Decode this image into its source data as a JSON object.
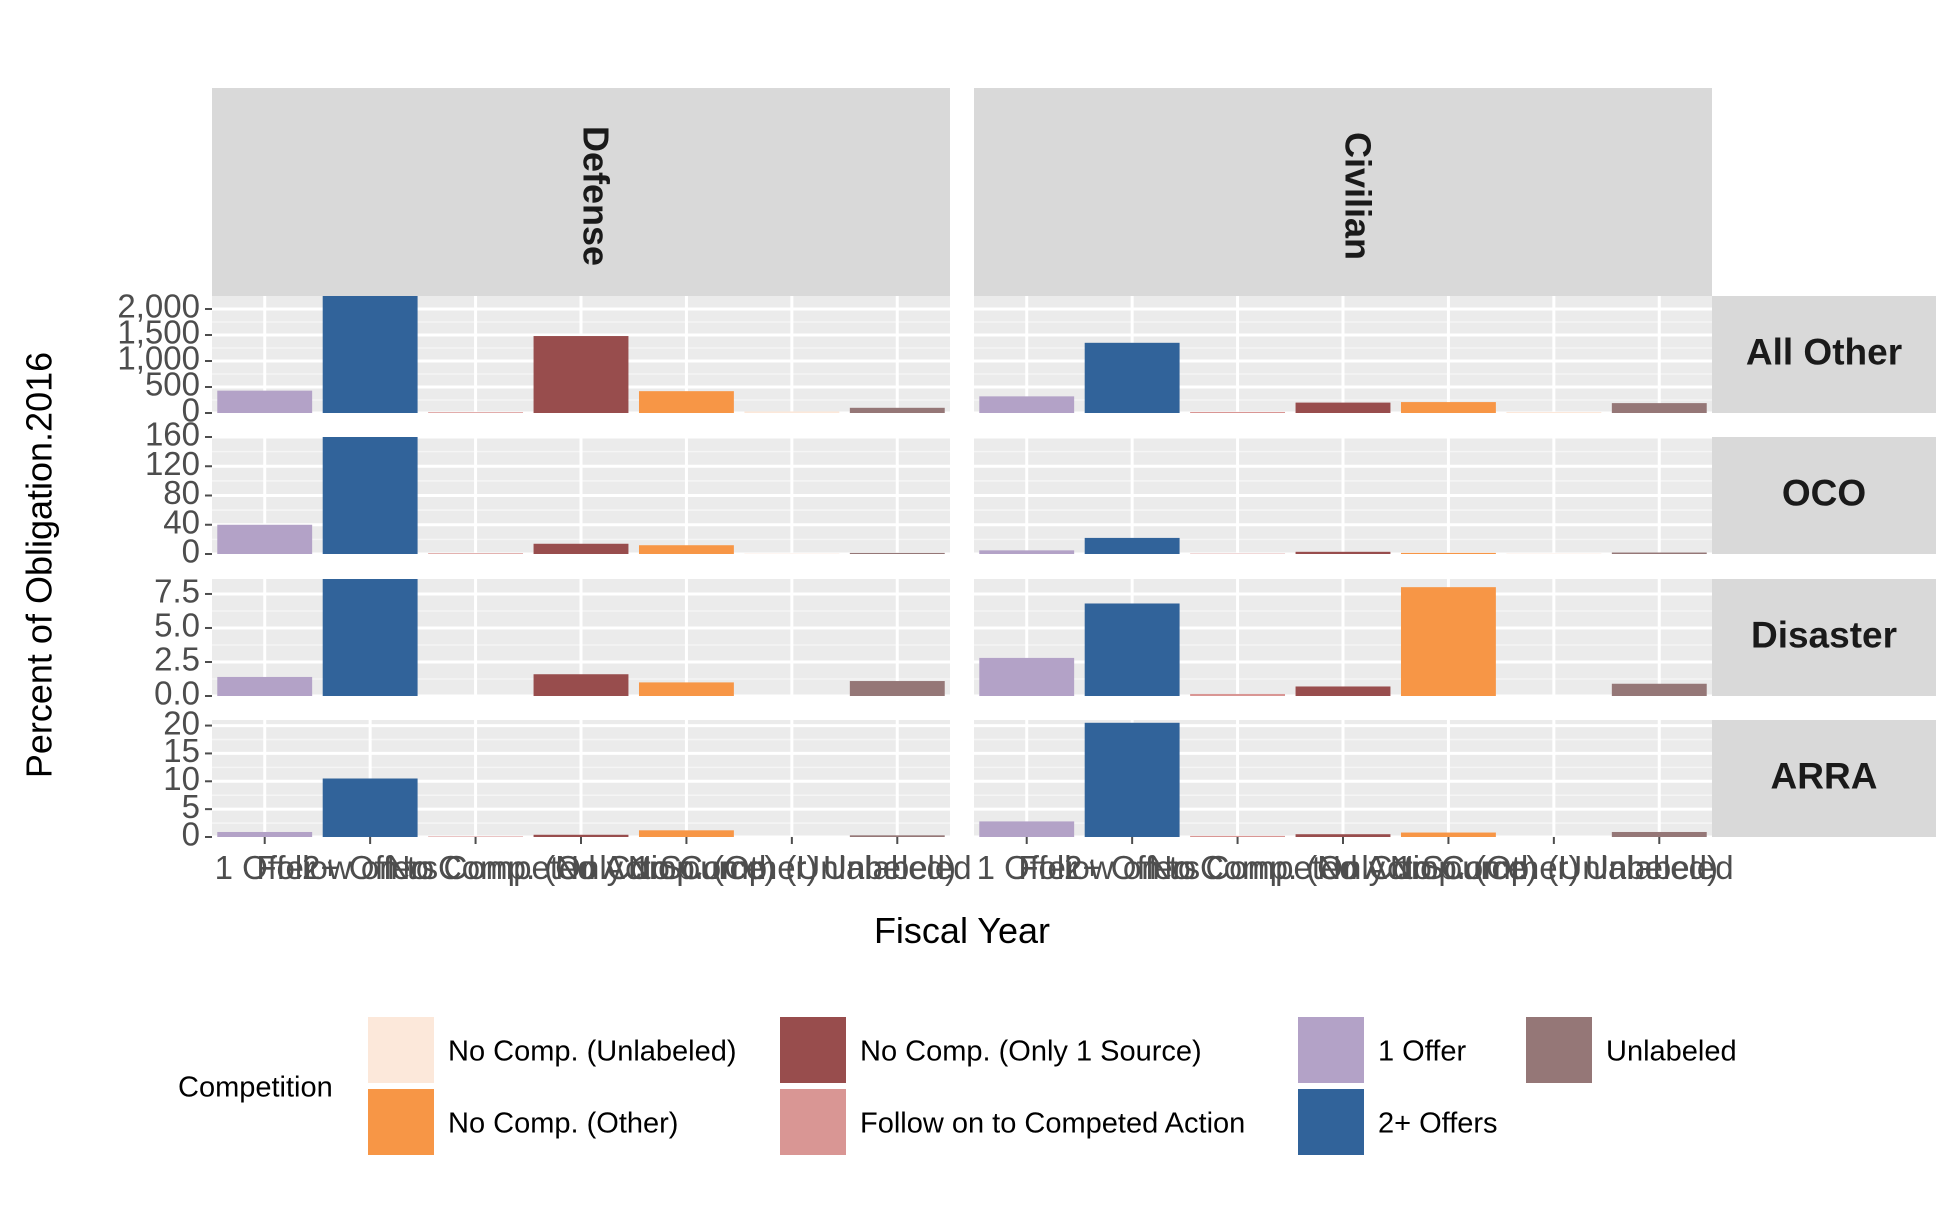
{
  "chart_data": {
    "type": "bar",
    "xlabel": "Fiscal Year",
    "ylabel": "Percent of Obligation.2016",
    "categories": [
      "1 Offer",
      "2+ Offers",
      "Follow on to Competed Action",
      "No Comp. (Only 1 Source)",
      "No Comp. (Other)",
      "No Comp. (Unlabeled)",
      "Unlabeled"
    ],
    "column_facets": [
      "Defense",
      "Civilian"
    ],
    "row_facets": [
      {
        "label": "All Other",
        "ylim": [
          0,
          2250
        ],
        "ticks": [
          0,
          500,
          1000,
          1500,
          2000
        ],
        "tick_labels": [
          "0",
          "500",
          "1,000",
          "1,500",
          "2,000"
        ],
        "values": {
          "Defense": [
            430,
            2350,
            15,
            1480,
            420,
            30,
            100
          ],
          "Civilian": [
            320,
            1350,
            20,
            200,
            210,
            20,
            190
          ]
        }
      },
      {
        "label": "OCO",
        "ylim": [
          0,
          160
        ],
        "ticks": [
          0,
          40,
          80,
          120,
          160
        ],
        "tick_labels": [
          "0",
          "40",
          "80",
          "120",
          "160"
        ],
        "values": {
          "Defense": [
            40,
            165,
            1,
            14,
            12,
            0.5,
            1.5
          ],
          "Civilian": [
            5,
            22,
            0.5,
            3,
            1.5,
            0.5,
            2
          ]
        }
      },
      {
        "label": "Disaster",
        "ylim": [
          0,
          8.6
        ],
        "ticks": [
          0,
          2.5,
          5,
          7.5
        ],
        "tick_labels": [
          "0.0",
          "2.5",
          "5.0",
          "7.5"
        ],
        "values": {
          "Defense": [
            1.4,
            8.6,
            0,
            1.6,
            1.0,
            0,
            1.1
          ],
          "Civilian": [
            2.8,
            6.8,
            0.15,
            0.7,
            8.0,
            0,
            0.9
          ]
        }
      },
      {
        "label": "ARRA",
        "ylim": [
          0,
          21
        ],
        "ticks": [
          0,
          5,
          10,
          15,
          20
        ],
        "tick_labels": [
          "0",
          "5",
          "10",
          "15",
          "20"
        ],
        "values": {
          "Defense": [
            0.9,
            10.5,
            0.1,
            0.4,
            1.2,
            0,
            0.3
          ],
          "Civilian": [
            2.8,
            20.5,
            0.2,
            0.5,
            0.8,
            0,
            0.9
          ]
        }
      }
    ],
    "legend": {
      "title": "Competition",
      "position": "bottom",
      "entries": [
        {
          "name": "No Comp. (Unlabeled)",
          "color": "#FCE8DA"
        },
        {
          "name": "No Comp. (Other)",
          "color": "#F79646"
        },
        {
          "name": "No Comp. (Only 1 Source)",
          "color": "#984D4D"
        },
        {
          "name": "Follow on to Competed Action",
          "color": "#D99694"
        },
        {
          "name": "1 Offer",
          "color": "#B3A2C7"
        },
        {
          "name": "2+ Offers",
          "color": "#31639A"
        },
        {
          "name": "Unlabeled",
          "color": "#957777"
        }
      ]
    },
    "colors": {
      "1 Offer": "#B3A2C7",
      "2+ Offers": "#31639A",
      "Follow on to Competed Action": "#D99694",
      "No Comp. (Only 1 Source)": "#984D4D",
      "No Comp. (Other)": "#F79646",
      "No Comp. (Unlabeled)": "#FCE8DA",
      "Unlabeled": "#957777"
    },
    "grid": true
  }
}
